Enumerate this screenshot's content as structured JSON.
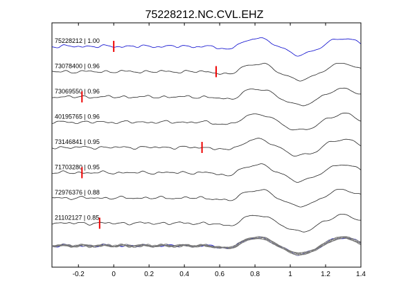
{
  "chart_data": {
    "type": "line",
    "title": "75228212.NC.CVL.EHZ",
    "xlabel": "",
    "ylabel": "",
    "xlim": [
      -0.35,
      1.4
    ],
    "x_ticks": [
      -0.2,
      0,
      0.2,
      0.4,
      0.6,
      0.8,
      1,
      1.2,
      1.4
    ],
    "x_tick_labels": [
      "-0.2",
      "0",
      "0.2",
      "0.4",
      "0.6",
      "0.8",
      "1",
      "1.2",
      "1.4"
    ],
    "grid": false,
    "colors": {
      "reference": "#0000cc",
      "trace": "#222222",
      "pick": "#ee0000",
      "stack_gray": "#777777"
    },
    "traces": [
      {
        "label": "75228212 | 1.00",
        "pick_time": 0.0
      },
      {
        "label": "73078400 | 0.96",
        "pick_time": 0.58
      },
      {
        "label": "73069550 | 0.96",
        "pick_time": -0.18
      },
      {
        "label": "40195765 | 0.96"
      },
      {
        "label": "73146841 | 0.95",
        "pick_time": 0.5
      },
      {
        "label": "71703280 | 0.95",
        "pick_time": -0.18
      },
      {
        "label": "72976376 | 0.88"
      },
      {
        "label": "21102127 | 0.85",
        "pick_time": -0.08
      }
    ]
  }
}
